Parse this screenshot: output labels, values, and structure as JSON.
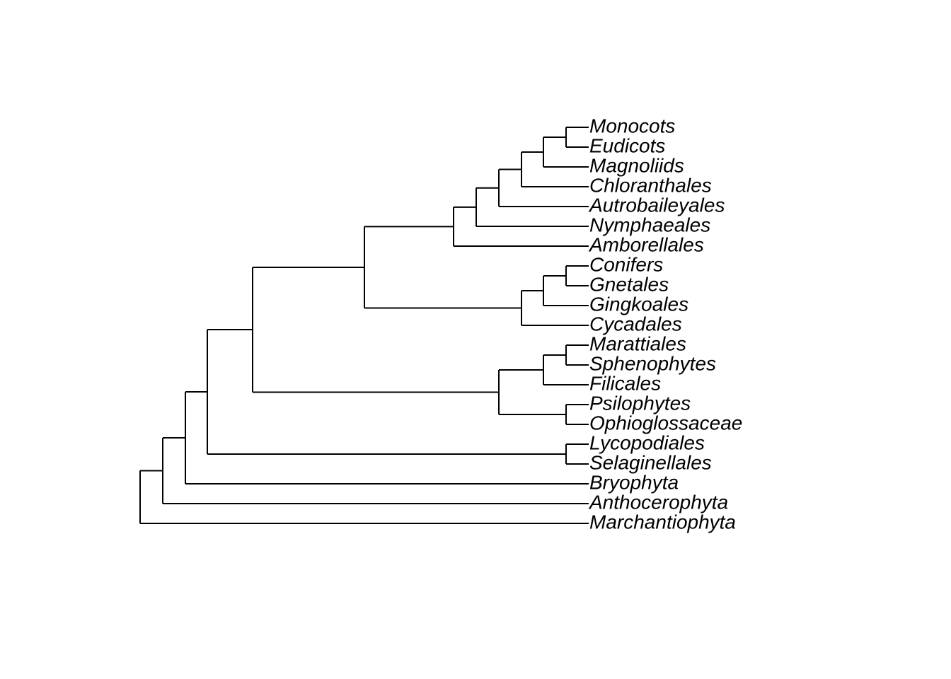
{
  "tree": {
    "tips": [
      "Monocots",
      "Eudicots",
      "Magnoliids",
      "Chloranthales",
      "Autrobaileyales",
      "Nymphaeales",
      "Amborellales",
      "Conifers",
      "Gnetales",
      "Gingkoales",
      "Cycadales",
      "Marattiales",
      "Sphenophytes",
      "Filicales",
      "Psilophytes",
      "Ophioglossaceae",
      "Lycopodiales",
      "Selaginellales",
      "Bryophyta",
      "Anthocerophyta",
      "Marchantiophyta"
    ]
  }
}
